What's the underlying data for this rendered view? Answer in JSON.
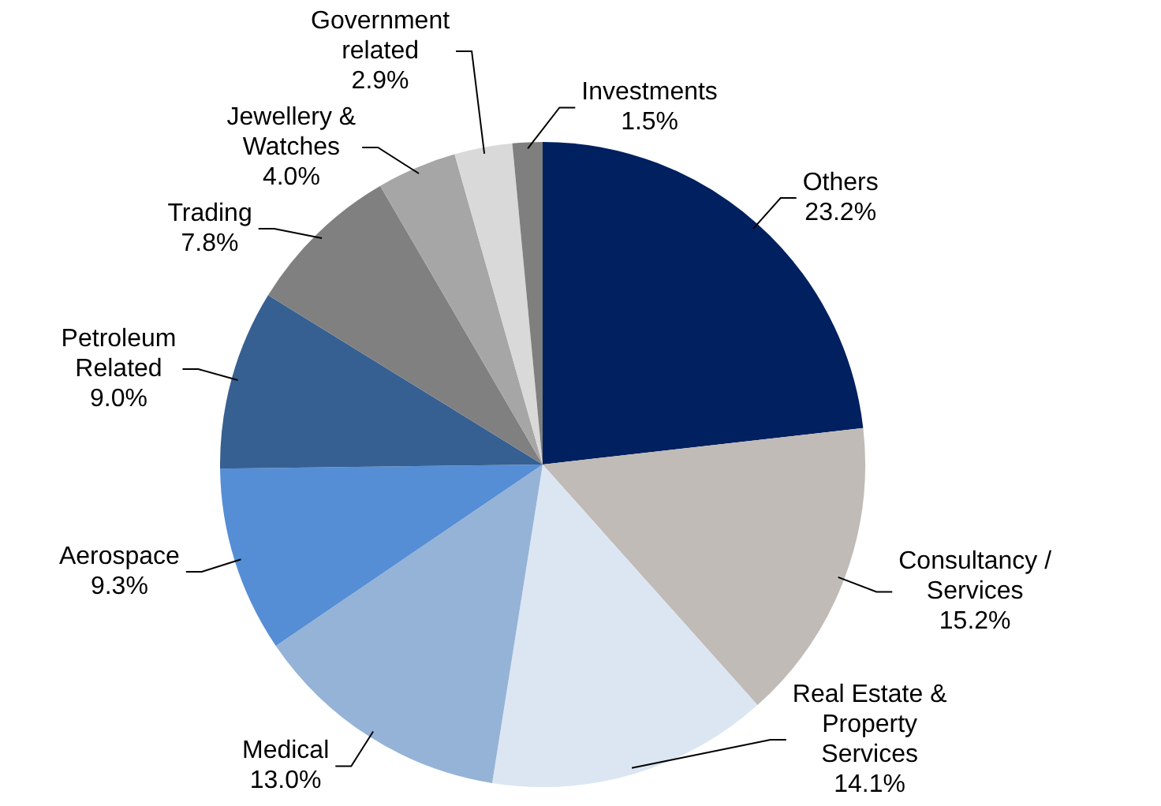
{
  "chart_data": {
    "type": "pie",
    "categories": [
      "Others",
      "Consultancy / Services",
      "Real Estate & Property Services",
      "Medical",
      "Aerospace",
      "Petroleum Related",
      "Trading",
      "Jewellery & Watches",
      "Government related",
      "Investments"
    ],
    "values": [
      23.2,
      15.2,
      14.1,
      13.0,
      9.3,
      9.0,
      7.8,
      4.0,
      2.9,
      1.5
    ],
    "value_labels": [
      "23.2%",
      "15.2%",
      "14.1%",
      "13.0%",
      "9.3%",
      "9.0%",
      "7.8%",
      "4.0%",
      "2.9%",
      "1.5%"
    ],
    "colors": [
      "#002060",
      "#c0bbb6",
      "#dce6f2",
      "#95b3d7",
      "#558ed5",
      "#376092",
      "#808080",
      "#a6a6a6",
      "#d9d9d9",
      "#7f7f7f"
    ],
    "legend": false
  }
}
